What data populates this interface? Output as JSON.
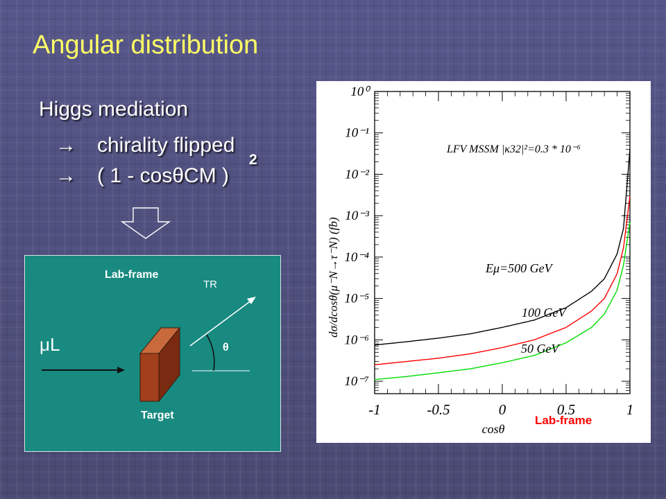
{
  "slide": {
    "title": "Angular distribution",
    "bullets": [
      "Higgs mediation",
      "→　chirality flipped",
      "→　( 1 - cosθCM )"
    ],
    "superscript": "2",
    "colors": {
      "title": "#ffff66",
      "text": "#ffffff",
      "box": "#188a80",
      "target": "#a2401c"
    }
  },
  "diagram": {
    "lab_frame_label": "Lab-frame",
    "tr_label": "TR",
    "mu_label": "μL",
    "theta_label": "θ",
    "target_label": "Target"
  },
  "plot": {
    "lab_frame_label": "Lab-frame",
    "colors": {
      "black": "#000000",
      "red": "#ff0000",
      "green": "#00dd00"
    }
  },
  "chart_data": {
    "type": "line",
    "title": "LFV MSSM |κ32|²=0.3 * 10⁻⁶",
    "xlabel": "cosθ",
    "ylabel": "dσ/dcosθ(μ⁻N→τ⁻N)  (fb)",
    "xlim": [
      -1,
      1
    ],
    "ylim": [
      1e-07,
      1
    ],
    "ylog": true,
    "x_ticks": [
      "-1",
      "-0.5",
      "0",
      "0.5",
      "1"
    ],
    "y_ticks": [
      "10⁰",
      "10⁻¹",
      "10⁻²",
      "10⁻³",
      "10⁻⁴",
      "10⁻⁵",
      "10⁻⁶",
      "10⁻⁷"
    ],
    "x": [
      -1,
      -0.75,
      -0.5,
      -0.25,
      0,
      0.25,
      0.5,
      0.7,
      0.8,
      0.9,
      0.95,
      1.0
    ],
    "series": [
      {
        "name": "Eμ=500 GeV",
        "values": [
          7.5e-07,
          9e-07,
          1.1e-06,
          1.4e-06,
          2e-06,
          3e-06,
          6e-06,
          1.5e-05,
          3e-05,
          0.00012,
          0.0005,
          0.04
        ]
      },
      {
        "name": "100 GeV",
        "values": [
          2.5e-07,
          3e-07,
          3.6e-07,
          4.6e-07,
          6.5e-07,
          1e-06,
          2e-06,
          5e-06,
          1e-05,
          4e-05,
          0.00017,
          0.003
        ]
      },
      {
        "name": "50 GeV",
        "values": [
          1.1e-07,
          1.3e-07,
          1.6e-07,
          2e-07,
          2.8e-07,
          4.2e-07,
          8.5e-07,
          2e-06,
          4.2e-06,
          1.6e-05,
          6.5e-05,
          0.0007
        ]
      }
    ]
  }
}
